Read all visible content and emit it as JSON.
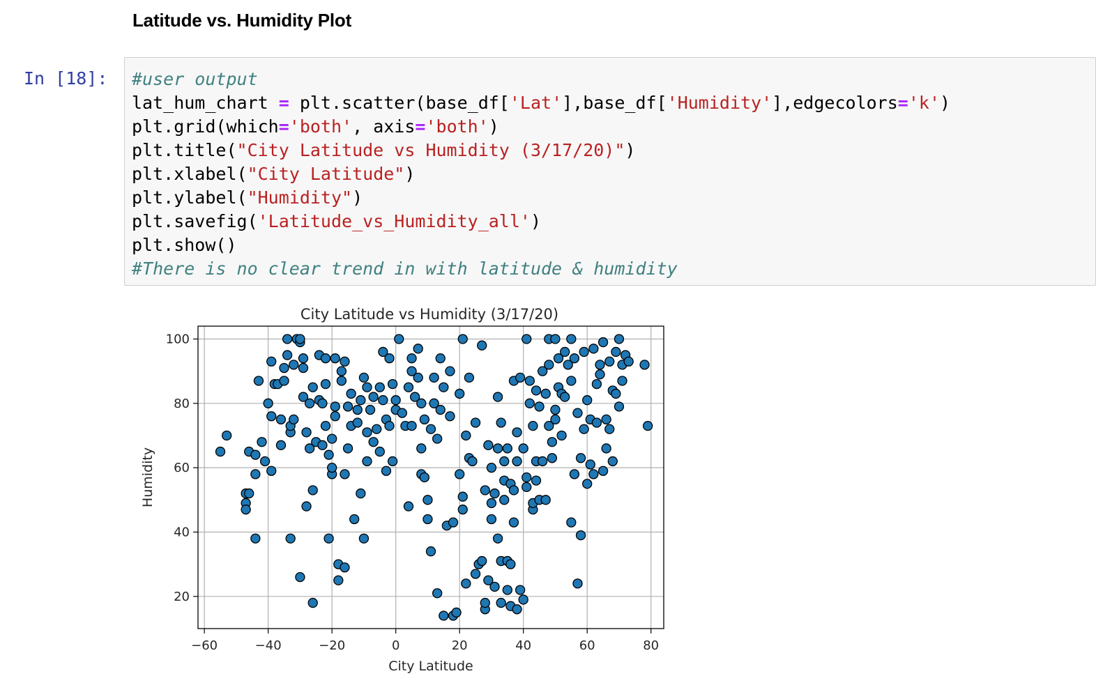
{
  "markdown": {
    "heading": "Latitude vs. Humidity Plot"
  },
  "cell": {
    "prompt": "In [18]:",
    "lines": [
      [
        {
          "t": "#user output",
          "c": "cm"
        }
      ],
      [
        {
          "t": "lat_hum_chart ",
          "c": ""
        },
        {
          "t": "=",
          "c": "o"
        },
        {
          "t": " plt.scatter(base_df[",
          "c": ""
        },
        {
          "t": "'Lat'",
          "c": "s"
        },
        {
          "t": "],base_df[",
          "c": ""
        },
        {
          "t": "'Humidity'",
          "c": "s"
        },
        {
          "t": "],edgecolors",
          "c": ""
        },
        {
          "t": "=",
          "c": "o"
        },
        {
          "t": "'k'",
          "c": "s"
        },
        {
          "t": ")",
          "c": ""
        }
      ],
      [
        {
          "t": "plt.grid(which",
          "c": ""
        },
        {
          "t": "=",
          "c": "o"
        },
        {
          "t": "'both'",
          "c": "s"
        },
        {
          "t": ", axis",
          "c": ""
        },
        {
          "t": "=",
          "c": "o"
        },
        {
          "t": "'both'",
          "c": "s"
        },
        {
          "t": ")",
          "c": ""
        }
      ],
      [
        {
          "t": "plt.title(",
          "c": ""
        },
        {
          "t": "\"City Latitude vs Humidity (3/17/20)\"",
          "c": "s"
        },
        {
          "t": ")",
          "c": ""
        }
      ],
      [
        {
          "t": "plt.xlabel(",
          "c": ""
        },
        {
          "t": "\"City Latitude\"",
          "c": "s"
        },
        {
          "t": ")",
          "c": ""
        }
      ],
      [
        {
          "t": "plt.ylabel(",
          "c": ""
        },
        {
          "t": "\"Humidity\"",
          "c": "s"
        },
        {
          "t": ")",
          "c": ""
        }
      ],
      [
        {
          "t": "plt.savefig(",
          "c": ""
        },
        {
          "t": "'Latitude_vs_Humidity_all'",
          "c": "s"
        },
        {
          "t": ")",
          "c": ""
        }
      ],
      [
        {
          "t": "plt.show()",
          "c": ""
        }
      ],
      [
        {
          "t": "#There is no clear trend in with latitude & humidity",
          "c": "cm"
        }
      ]
    ]
  },
  "chart_data": {
    "type": "scatter",
    "title": "City Latitude vs Humidity (3/17/20)",
    "xlabel": "City Latitude",
    "ylabel": "Humidity",
    "xlim": [
      -62,
      84
    ],
    "ylim": [
      10,
      104
    ],
    "xticks": [
      -60,
      -40,
      -20,
      0,
      20,
      40,
      60,
      80
    ],
    "xtick_labels": [
      "−60",
      "−40",
      "−20",
      "0",
      "20",
      "40",
      "60",
      "80"
    ],
    "yticks": [
      20,
      40,
      60,
      80,
      100
    ],
    "ytick_labels": [
      "20",
      "40",
      "60",
      "80",
      "100"
    ],
    "grid": true,
    "marker_color": "#1f77b4",
    "edge_color": "#000000",
    "points": [
      [
        -55,
        65
      ],
      [
        -53,
        70
      ],
      [
        -47,
        52
      ],
      [
        -47,
        49
      ],
      [
        -47,
        47
      ],
      [
        -46,
        52
      ],
      [
        -46,
        65
      ],
      [
        -44,
        64
      ],
      [
        -44,
        58
      ],
      [
        -44,
        38
      ],
      [
        -43,
        87
      ],
      [
        -42,
        68
      ],
      [
        -41,
        62
      ],
      [
        -40,
        80
      ],
      [
        -39,
        59
      ],
      [
        -39,
        76
      ],
      [
        -39,
        93
      ],
      [
        -38,
        86
      ],
      [
        -37,
        86
      ],
      [
        -36,
        67
      ],
      [
        -36,
        75
      ],
      [
        -35,
        87
      ],
      [
        -35,
        91
      ],
      [
        -34,
        95
      ],
      [
        -34,
        100
      ],
      [
        -33,
        38
      ],
      [
        -33,
        71
      ],
      [
        -33,
        73
      ],
      [
        -32,
        75
      ],
      [
        -32,
        92
      ],
      [
        -31,
        100
      ],
      [
        -30,
        99
      ],
      [
        -30,
        100
      ],
      [
        -30,
        26
      ],
      [
        -29,
        82
      ],
      [
        -29,
        91
      ],
      [
        -29,
        94
      ],
      [
        -28,
        48
      ],
      [
        -28,
        71
      ],
      [
        -27,
        66
      ],
      [
        -27,
        80
      ],
      [
        -26,
        85
      ],
      [
        -26,
        53
      ],
      [
        -26,
        18
      ],
      [
        -25,
        68
      ],
      [
        -24,
        81
      ],
      [
        -24,
        95
      ],
      [
        -23,
        67
      ],
      [
        -23,
        80
      ],
      [
        -22,
        73
      ],
      [
        -22,
        86
      ],
      [
        -22,
        94
      ],
      [
        -21,
        38
      ],
      [
        -21,
        64
      ],
      [
        -20,
        58
      ],
      [
        -20,
        60
      ],
      [
        -20,
        69
      ],
      [
        -19,
        76
      ],
      [
        -19,
        79
      ],
      [
        -19,
        94
      ],
      [
        -18,
        30
      ],
      [
        -18,
        25
      ],
      [
        -17,
        87
      ],
      [
        -17,
        90
      ],
      [
        -16,
        93
      ],
      [
        -16,
        58
      ],
      [
        -16,
        29
      ],
      [
        -15,
        66
      ],
      [
        -15,
        79
      ],
      [
        -14,
        83
      ],
      [
        -14,
        73
      ],
      [
        -13,
        44
      ],
      [
        -12,
        78
      ],
      [
        -12,
        74
      ],
      [
        -11,
        52
      ],
      [
        -11,
        81
      ],
      [
        -10,
        38
      ],
      [
        -10,
        88
      ],
      [
        -9,
        85
      ],
      [
        -9,
        71
      ],
      [
        -9,
        62
      ],
      [
        -8,
        78
      ],
      [
        -7,
        68
      ],
      [
        -7,
        82
      ],
      [
        -6,
        72
      ],
      [
        -5,
        85
      ],
      [
        -5,
        65
      ],
      [
        -4,
        96
      ],
      [
        -4,
        81
      ],
      [
        -3,
        59
      ],
      [
        -3,
        75
      ],
      [
        -2,
        94
      ],
      [
        -2,
        73
      ],
      [
        -1,
        62
      ],
      [
        -1,
        86
      ],
      [
        0,
        78
      ],
      [
        0,
        81
      ],
      [
        1,
        100
      ],
      [
        2,
        77
      ],
      [
        3,
        73
      ],
      [
        4,
        85
      ],
      [
        4,
        48
      ],
      [
        5,
        94
      ],
      [
        5,
        73
      ],
      [
        5,
        90
      ],
      [
        6,
        82
      ],
      [
        7,
        88
      ],
      [
        7,
        97
      ],
      [
        8,
        80
      ],
      [
        8,
        58
      ],
      [
        8,
        66
      ],
      [
        9,
        57
      ],
      [
        9,
        75
      ],
      [
        10,
        50
      ],
      [
        10,
        44
      ],
      [
        11,
        34
      ],
      [
        11,
        72
      ],
      [
        12,
        80
      ],
      [
        12,
        88
      ],
      [
        13,
        69
      ],
      [
        13,
        21
      ],
      [
        14,
        94
      ],
      [
        14,
        78
      ],
      [
        15,
        14
      ],
      [
        15,
        85
      ],
      [
        16,
        42
      ],
      [
        17,
        76
      ],
      [
        17,
        90
      ],
      [
        18,
        43
      ],
      [
        18,
        14
      ],
      [
        19,
        15
      ],
      [
        20,
        58
      ],
      [
        20,
        83
      ],
      [
        21,
        51
      ],
      [
        21,
        100
      ],
      [
        21,
        47
      ],
      [
        22,
        24
      ],
      [
        22,
        70
      ],
      [
        23,
        63
      ],
      [
        23,
        88
      ],
      [
        24,
        62
      ],
      [
        25,
        27
      ],
      [
        25,
        74
      ],
      [
        26,
        30
      ],
      [
        27,
        98
      ],
      [
        27,
        31
      ],
      [
        28,
        53
      ],
      [
        28,
        16
      ],
      [
        28,
        18
      ],
      [
        29,
        67
      ],
      [
        29,
        25
      ],
      [
        30,
        44
      ],
      [
        30,
        49
      ],
      [
        30,
        60
      ],
      [
        31,
        52
      ],
      [
        31,
        23
      ],
      [
        32,
        66
      ],
      [
        32,
        38
      ],
      [
        32,
        82
      ],
      [
        33,
        74
      ],
      [
        33,
        31
      ],
      [
        33,
        18
      ],
      [
        34,
        56
      ],
      [
        34,
        62
      ],
      [
        34,
        50
      ],
      [
        35,
        31
      ],
      [
        35,
        66
      ],
      [
        35,
        22
      ],
      [
        36,
        30
      ],
      [
        36,
        55
      ],
      [
        36,
        17
      ],
      [
        37,
        53
      ],
      [
        37,
        43
      ],
      [
        37,
        87
      ],
      [
        38,
        71
      ],
      [
        38,
        62
      ],
      [
        38,
        16
      ],
      [
        39,
        22
      ],
      [
        39,
        88
      ],
      [
        40,
        19
      ],
      [
        40,
        66
      ],
      [
        41,
        100
      ],
      [
        41,
        57
      ],
      [
        41,
        54
      ],
      [
        42,
        80
      ],
      [
        42,
        87
      ],
      [
        43,
        47
      ],
      [
        43,
        49
      ],
      [
        43,
        73
      ],
      [
        44,
        62
      ],
      [
        44,
        56
      ],
      [
        44,
        84
      ],
      [
        45,
        50
      ],
      [
        45,
        79
      ],
      [
        46,
        90
      ],
      [
        46,
        62
      ],
      [
        47,
        50
      ],
      [
        47,
        83
      ],
      [
        48,
        92
      ],
      [
        48,
        73
      ],
      [
        48,
        100
      ],
      [
        49,
        68
      ],
      [
        49,
        63
      ],
      [
        50,
        75
      ],
      [
        50,
        78
      ],
      [
        50,
        100
      ],
      [
        51,
        94
      ],
      [
        51,
        85
      ],
      [
        52,
        70
      ],
      [
        52,
        83
      ],
      [
        53,
        82
      ],
      [
        53,
        96
      ],
      [
        54,
        92
      ],
      [
        55,
        43
      ],
      [
        55,
        100
      ],
      [
        55,
        87
      ],
      [
        56,
        58
      ],
      [
        56,
        94
      ],
      [
        57,
        24
      ],
      [
        57,
        77
      ],
      [
        58,
        39
      ],
      [
        58,
        63
      ],
      [
        59,
        72
      ],
      [
        59,
        96
      ],
      [
        60,
        55
      ],
      [
        60,
        81
      ],
      [
        61,
        61
      ],
      [
        61,
        75
      ],
      [
        62,
        58
      ],
      [
        62,
        97
      ],
      [
        63,
        74
      ],
      [
        63,
        86
      ],
      [
        64,
        92
      ],
      [
        64,
        89
      ],
      [
        65,
        59
      ],
      [
        65,
        99
      ],
      [
        66,
        66
      ],
      [
        66,
        75
      ],
      [
        67,
        72
      ],
      [
        67,
        93
      ],
      [
        68,
        62
      ],
      [
        68,
        84
      ],
      [
        69,
        83
      ],
      [
        69,
        96
      ],
      [
        70,
        79
      ],
      [
        70,
        100
      ],
      [
        71,
        87
      ],
      [
        71,
        92
      ],
      [
        72,
        95
      ],
      [
        73,
        93
      ],
      [
        78,
        92
      ],
      [
        79,
        73
      ]
    ]
  }
}
